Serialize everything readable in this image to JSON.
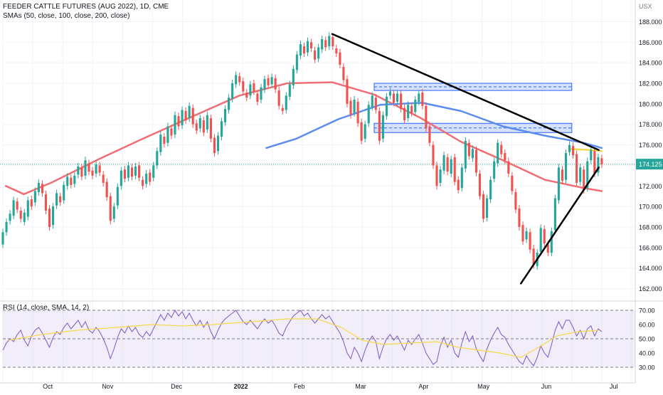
{
  "chart_data": {
    "type": "candlestick",
    "title": "FEEDER CATTLE FUTURES (AUG 2022), 1D, CME",
    "subtitle": "SMAs (50, close, 100, close, 200, close)",
    "currency_label": "USX",
    "last_price": "174.125",
    "price_axis": {
      "ylim": [
        161,
        189
      ],
      "ticks": [
        "162.000",
        "164.000",
        "166.000",
        "168.000",
        "170.000",
        "172.000",
        "174.000",
        "176.000",
        "178.000",
        "180.000",
        "182.000",
        "184.000",
        "186.000",
        "188.000"
      ]
    },
    "x_axis": {
      "ticks": [
        "Oct",
        "Nov",
        "Dec",
        "2022",
        "Feb",
        "Mar",
        "Apr",
        "May",
        "Jun",
        "Jul"
      ]
    },
    "candles": [
      {
        "o": 166.3,
        "c": 167.5
      },
      {
        "o": 167.5,
        "c": 168.5
      },
      {
        "o": 168.6,
        "c": 169.3
      },
      {
        "o": 169.1,
        "c": 170.6
      },
      {
        "o": 170.5,
        "c": 169.7
      },
      {
        "o": 169.6,
        "c": 168.8
      },
      {
        "o": 168.5,
        "c": 169.4
      },
      {
        "o": 169.0,
        "c": 170.6
      },
      {
        "o": 170.7,
        "c": 170.0
      },
      {
        "o": 170.4,
        "c": 171.5
      },
      {
        "o": 171.4,
        "c": 172.3
      },
      {
        "o": 172.2,
        "c": 171.3
      },
      {
        "o": 171.2,
        "c": 169.6
      },
      {
        "o": 169.8,
        "c": 168.0
      },
      {
        "o": 168.2,
        "c": 170.0
      },
      {
        "o": 170.1,
        "c": 171.3
      },
      {
        "o": 171.0,
        "c": 170.4
      },
      {
        "o": 170.6,
        "c": 172.1
      },
      {
        "o": 172.0,
        "c": 172.9
      },
      {
        "o": 172.8,
        "c": 172.1
      },
      {
        "o": 172.2,
        "c": 173.0
      },
      {
        "o": 173.1,
        "c": 173.9
      },
      {
        "o": 173.8,
        "c": 172.9
      },
      {
        "o": 173.0,
        "c": 174.5
      },
      {
        "o": 174.2,
        "c": 173.4
      },
      {
        "o": 173.5,
        "c": 173.0
      },
      {
        "o": 173.2,
        "c": 174.1
      },
      {
        "o": 174.0,
        "c": 173.3
      },
      {
        "o": 173.1,
        "c": 172.3
      },
      {
        "o": 172.4,
        "c": 170.9
      },
      {
        "o": 171.0,
        "c": 168.6
      },
      {
        "o": 168.8,
        "c": 170.0
      },
      {
        "o": 170.1,
        "c": 171.9
      },
      {
        "o": 172.0,
        "c": 173.5
      },
      {
        "o": 173.6,
        "c": 172.7
      },
      {
        "o": 172.8,
        "c": 174.0
      },
      {
        "o": 173.8,
        "c": 172.9
      },
      {
        "o": 173.0,
        "c": 173.9
      },
      {
        "o": 174.0,
        "c": 172.8
      },
      {
        "o": 172.6,
        "c": 172.0
      },
      {
        "o": 172.2,
        "c": 173.2
      },
      {
        "o": 173.3,
        "c": 172.4
      },
      {
        "o": 172.8,
        "c": 174.0
      },
      {
        "o": 174.0,
        "c": 175.4
      },
      {
        "o": 175.3,
        "c": 177.0
      },
      {
        "o": 176.8,
        "c": 176.1
      },
      {
        "o": 176.2,
        "c": 177.8
      },
      {
        "o": 177.6,
        "c": 176.9
      },
      {
        "o": 177.0,
        "c": 178.9
      },
      {
        "o": 178.8,
        "c": 177.8
      },
      {
        "o": 177.9,
        "c": 179.4
      },
      {
        "o": 179.3,
        "c": 178.4
      },
      {
        "o": 178.6,
        "c": 179.8
      },
      {
        "o": 179.6,
        "c": 178.0
      },
      {
        "o": 178.1,
        "c": 177.4
      },
      {
        "o": 177.6,
        "c": 178.6
      },
      {
        "o": 178.4,
        "c": 177.2
      },
      {
        "o": 177.5,
        "c": 178.9
      },
      {
        "o": 178.6,
        "c": 176.6
      },
      {
        "o": 176.7,
        "c": 175.2
      },
      {
        "o": 175.4,
        "c": 176.9
      },
      {
        "o": 176.8,
        "c": 178.3
      },
      {
        "o": 178.2,
        "c": 179.5
      },
      {
        "o": 179.4,
        "c": 180.6
      },
      {
        "o": 180.5,
        "c": 182.0
      },
      {
        "o": 181.9,
        "c": 182.8
      },
      {
        "o": 182.7,
        "c": 182.1
      },
      {
        "o": 182.2,
        "c": 181.2
      },
      {
        "o": 181.1,
        "c": 180.6
      },
      {
        "o": 180.8,
        "c": 181.9
      },
      {
        "o": 182.0,
        "c": 181.2
      },
      {
        "o": 181.0,
        "c": 180.2
      },
      {
        "o": 180.4,
        "c": 181.6
      },
      {
        "o": 181.4,
        "c": 182.4
      },
      {
        "o": 182.5,
        "c": 181.8
      },
      {
        "o": 181.9,
        "c": 182.6
      },
      {
        "o": 182.5,
        "c": 181.4
      },
      {
        "o": 181.3,
        "c": 179.8
      },
      {
        "o": 179.6,
        "c": 179.3
      },
      {
        "o": 179.4,
        "c": 180.8
      },
      {
        "o": 180.7,
        "c": 181.9
      },
      {
        "o": 181.8,
        "c": 183.4
      },
      {
        "o": 183.3,
        "c": 184.8
      },
      {
        "o": 184.7,
        "c": 185.8
      },
      {
        "o": 185.6,
        "c": 184.9
      },
      {
        "o": 185.0,
        "c": 186.1
      },
      {
        "o": 186.0,
        "c": 185.4
      },
      {
        "o": 185.2,
        "c": 184.3
      },
      {
        "o": 184.4,
        "c": 185.5
      },
      {
        "o": 185.3,
        "c": 186.3
      },
      {
        "o": 186.2,
        "c": 185.5
      },
      {
        "o": 185.6,
        "c": 186.6
      },
      {
        "o": 186.5,
        "c": 185.6
      },
      {
        "o": 185.4,
        "c": 184.9
      },
      {
        "o": 185.0,
        "c": 183.8
      },
      {
        "o": 183.6,
        "c": 182.3
      },
      {
        "o": 182.4,
        "c": 180.0
      },
      {
        "o": 180.3,
        "c": 178.9
      },
      {
        "o": 179.1,
        "c": 180.4
      },
      {
        "o": 180.2,
        "c": 178.1
      },
      {
        "o": 178.2,
        "c": 176.4
      },
      {
        "o": 176.6,
        "c": 178.0
      },
      {
        "o": 178.1,
        "c": 179.9
      },
      {
        "o": 179.7,
        "c": 180.8
      },
      {
        "o": 180.6,
        "c": 179.4
      },
      {
        "o": 179.3,
        "c": 176.4
      },
      {
        "o": 176.6,
        "c": 178.9
      },
      {
        "o": 178.8,
        "c": 180.7
      },
      {
        "o": 180.8,
        "c": 181.2
      },
      {
        "o": 181.0,
        "c": 180.1
      },
      {
        "o": 180.2,
        "c": 181.0
      },
      {
        "o": 181.0,
        "c": 179.5
      },
      {
        "o": 179.6,
        "c": 178.4
      },
      {
        "o": 178.6,
        "c": 179.9
      },
      {
        "o": 179.8,
        "c": 179.1
      },
      {
        "o": 179.2,
        "c": 180.4
      },
      {
        "o": 180.2,
        "c": 181.0
      },
      {
        "o": 181.1,
        "c": 179.8
      },
      {
        "o": 179.8,
        "c": 177.6
      },
      {
        "o": 177.8,
        "c": 176.2
      },
      {
        "o": 176.0,
        "c": 174.0
      },
      {
        "o": 174.0,
        "c": 172.0
      },
      {
        "o": 172.3,
        "c": 173.6
      },
      {
        "o": 173.5,
        "c": 175.0
      },
      {
        "o": 174.8,
        "c": 173.4
      },
      {
        "o": 173.2,
        "c": 174.6
      },
      {
        "o": 174.8,
        "c": 172.4
      },
      {
        "o": 172.6,
        "c": 171.6
      },
      {
        "o": 171.8,
        "c": 173.8
      },
      {
        "o": 173.7,
        "c": 176.4
      },
      {
        "o": 176.2,
        "c": 174.9
      },
      {
        "o": 174.7,
        "c": 175.6
      },
      {
        "o": 175.5,
        "c": 173.3
      },
      {
        "o": 173.2,
        "c": 171.0
      },
      {
        "o": 171.2,
        "c": 168.8
      },
      {
        "o": 168.9,
        "c": 170.8
      },
      {
        "o": 170.7,
        "c": 172.6
      },
      {
        "o": 172.7,
        "c": 174.4
      },
      {
        "o": 174.2,
        "c": 176.2
      },
      {
        "o": 176.0,
        "c": 175.1
      },
      {
        "o": 175.2,
        "c": 174.5
      },
      {
        "o": 174.4,
        "c": 173.2
      },
      {
        "o": 173.0,
        "c": 171.5
      },
      {
        "o": 171.4,
        "c": 169.7
      },
      {
        "o": 169.8,
        "c": 168.0
      },
      {
        "o": 168.2,
        "c": 166.6
      },
      {
        "o": 166.8,
        "c": 167.6
      },
      {
        "o": 167.5,
        "c": 165.8
      },
      {
        "o": 165.9,
        "c": 164.3
      },
      {
        "o": 164.2,
        "c": 165.5
      },
      {
        "o": 165.6,
        "c": 167.9
      },
      {
        "o": 167.8,
        "c": 166.4
      },
      {
        "o": 166.3,
        "c": 165.5
      },
      {
        "o": 165.5,
        "c": 167.6
      },
      {
        "o": 167.7,
        "c": 170.8
      },
      {
        "o": 170.6,
        "c": 173.8
      },
      {
        "o": 173.6,
        "c": 172.5
      },
      {
        "o": 172.6,
        "c": 175.2
      },
      {
        "o": 175.3,
        "c": 176.0
      },
      {
        "o": 175.9,
        "c": 175.0
      },
      {
        "o": 175.1,
        "c": 172.3
      },
      {
        "o": 172.4,
        "c": 173.8
      },
      {
        "o": 173.6,
        "c": 171.6
      },
      {
        "o": 171.8,
        "c": 174.4
      },
      {
        "o": 174.5,
        "c": 175.5
      },
      {
        "o": 175.4,
        "c": 173.2
      },
      {
        "o": 173.3,
        "c": 174.8
      },
      {
        "o": 174.7,
        "c": 174.1
      }
    ],
    "sma_series": [
      {
        "name": "SMA 50",
        "color": "#f26d74",
        "points": [
          [
            0.1,
            172.0
          ],
          [
            0.7,
            171.2
          ],
          [
            1.6,
            172.3
          ],
          [
            3.2,
            174.6
          ],
          [
            4.6,
            176.5
          ],
          [
            6.2,
            178.6
          ],
          [
            7.9,
            180.8
          ],
          [
            9.5,
            182.0
          ],
          [
            11.0,
            182.1
          ],
          [
            12.4,
            180.9
          ],
          [
            13.9,
            178.7
          ],
          [
            15.3,
            176.3
          ],
          [
            16.7,
            174.5
          ],
          [
            18.1,
            172.6
          ],
          [
            19.4,
            171.8
          ],
          [
            20.0,
            171.5
          ]
        ]
      },
      {
        "name": "SMA 100",
        "color": "#5b8def",
        "points": [
          [
            8.8,
            175.7
          ],
          [
            9.8,
            176.6
          ],
          [
            11.2,
            178.5
          ],
          [
            12.6,
            179.9
          ],
          [
            14.0,
            180.1
          ],
          [
            15.3,
            179.3
          ],
          [
            16.7,
            177.8
          ],
          [
            18.1,
            176.9
          ],
          [
            19.4,
            176.2
          ],
          [
            20.0,
            175.7
          ]
        ]
      },
      {
        "name": "SMA 200",
        "color": "#f5d94a",
        "points": [
          [
            18.9,
            175.6
          ],
          [
            19.6,
            175.5
          ],
          [
            20.0,
            175.4
          ]
        ]
      }
    ],
    "zones": [
      {
        "from_x": 12.4,
        "to_x": 19.0,
        "y1": 181.3,
        "y2": 182.0
      },
      {
        "from_x": 12.4,
        "to_x": 19.0,
        "y1": 177.2,
        "y2": 178.1
      }
    ],
    "trendlines": [
      {
        "x1": 11.0,
        "y1": 186.8,
        "x2": 19.9,
        "y2": 175.5
      },
      {
        "x1": 17.3,
        "y1": 162.5,
        "x2": 19.9,
        "y2": 173.8
      }
    ],
    "rsi": {
      "label": "RSI (14, close, SMA, 14, 2)",
      "ylim": [
        27,
        72
      ],
      "ticks": [
        "30.00",
        "40.00",
        "50.00",
        "60.00",
        "70.00"
      ],
      "levels": [
        70,
        50,
        30
      ],
      "rsi_values": [
        42,
        47,
        50,
        48,
        53,
        56,
        49,
        45,
        52,
        56,
        58,
        54,
        49,
        44,
        51,
        55,
        53,
        58,
        61,
        57,
        60,
        63,
        58,
        62,
        56,
        54,
        58,
        55,
        50,
        44,
        36,
        43,
        51,
        57,
        54,
        59,
        55,
        58,
        53,
        51,
        55,
        52,
        57,
        62,
        67,
        63,
        68,
        65,
        70,
        66,
        69,
        64,
        68,
        63,
        59,
        63,
        58,
        62,
        55,
        50,
        56,
        61,
        64,
        66,
        68,
        70,
        66,
        62,
        60,
        63,
        60,
        57,
        61,
        64,
        61,
        63,
        59,
        54,
        52,
        58,
        62,
        66,
        68,
        70,
        66,
        68,
        64,
        61,
        64,
        67,
        64,
        66,
        62,
        58,
        54,
        48,
        40,
        36,
        44,
        40,
        34,
        42,
        48,
        52,
        48,
        36,
        44,
        50,
        53,
        49,
        52,
        47,
        42,
        49,
        46,
        50,
        53,
        47,
        40,
        36,
        32,
        34,
        45,
        51,
        44,
        49,
        40,
        37,
        47,
        55,
        48,
        52,
        43,
        38,
        34,
        43,
        49,
        54,
        58,
        53,
        51,
        46,
        42,
        38,
        34,
        32,
        38,
        34,
        31,
        37,
        45,
        40,
        37,
        46,
        56,
        62,
        57,
        63,
        63,
        58,
        52,
        56,
        50,
        57,
        59,
        52,
        57,
        55
      ],
      "rsi_ma": [
        [
          0.2,
          49
        ],
        [
          1.3,
          53
        ],
        [
          2.5,
          56
        ],
        [
          3.8,
          58
        ],
        [
          5.0,
          60
        ],
        [
          6.0,
          59
        ],
        [
          7.0,
          60
        ],
        [
          8.3,
          62
        ],
        [
          9.5,
          64
        ],
        [
          10.5,
          64
        ],
        [
          11.3,
          58
        ],
        [
          12.0,
          49
        ],
        [
          12.7,
          46
        ],
        [
          13.6,
          47
        ],
        [
          14.5,
          48
        ],
        [
          15.2,
          44
        ],
        [
          15.9,
          42
        ],
        [
          16.6,
          40
        ],
        [
          17.3,
          37
        ],
        [
          17.9,
          44
        ],
        [
          18.5,
          52
        ],
        [
          19.2,
          55
        ],
        [
          19.9,
          56
        ]
      ]
    }
  }
}
